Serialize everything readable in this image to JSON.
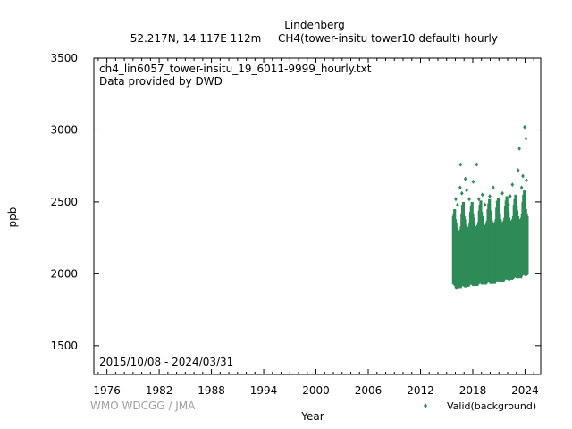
{
  "header": {
    "station": "Lindenberg",
    "location": "52.217N, 14.117E 112m",
    "parameter": "CH4(tower-insitu tower10 default) hourly"
  },
  "plot_notes": {
    "file": "ch4_lin6057_tower-insitu_19_6011-9999_hourly.txt",
    "provider": "Data provided by DWD",
    "period": "2015/10/08 - 2024/03/31"
  },
  "footer": {
    "credit": "WMO WDCGG / JMA"
  },
  "chart_data": {
    "type": "scatter",
    "title": "Lindenberg",
    "xlabel": "Year",
    "ylabel": "ppb",
    "xlim": [
      1974.5,
      2025.8
    ],
    "ylim": [
      1300,
      3500
    ],
    "xticks": [
      1976,
      1982,
      1988,
      1994,
      2000,
      2006,
      2012,
      2018,
      2024
    ],
    "yticks": [
      1500,
      2000,
      2500,
      3000,
      3500
    ],
    "legend": {
      "label": "Valid(background)",
      "position": "bottom-right",
      "color": "#2e8b57"
    },
    "grid": false,
    "series": [
      {
        "name": "Valid(background)",
        "color": "#2e8b57",
        "x": [
          2015.78,
          2015.85,
          2015.92,
          2016.0,
          2016.08,
          2016.17,
          2016.25,
          2016.33,
          2016.42,
          2016.5,
          2016.58,
          2016.67,
          2016.75,
          2016.83,
          2016.92,
          2017.0,
          2017.08,
          2017.17,
          2017.25,
          2017.33,
          2017.42,
          2017.5,
          2017.58,
          2017.67,
          2017.75,
          2017.83,
          2017.92,
          2018.0,
          2018.08,
          2018.17,
          2018.25,
          2018.33,
          2018.42,
          2018.5,
          2018.58,
          2018.67,
          2018.75,
          2018.83,
          2018.92,
          2019.0,
          2019.08,
          2019.17,
          2019.25,
          2019.33,
          2019.42,
          2019.5,
          2019.58,
          2019.67,
          2019.75,
          2019.83,
          2019.92,
          2020.0,
          2020.08,
          2020.17,
          2020.25,
          2020.33,
          2020.42,
          2020.5,
          2020.58,
          2020.67,
          2020.75,
          2020.83,
          2020.92,
          2021.0,
          2021.08,
          2021.17,
          2021.25,
          2021.33,
          2021.42,
          2021.5,
          2021.58,
          2021.67,
          2021.75,
          2021.83,
          2021.92,
          2022.0,
          2022.08,
          2022.17,
          2022.25,
          2022.33,
          2022.42,
          2022.5,
          2022.58,
          2022.67,
          2022.75,
          2022.83,
          2022.92,
          2023.0,
          2023.08,
          2023.17,
          2023.25,
          2023.33,
          2023.42,
          2023.5,
          2023.58,
          2023.67,
          2023.75,
          2023.83,
          2023.92,
          2024.0,
          2024.08,
          2024.17,
          2024.25
        ],
        "ymin": [
          1930,
          1925,
          1920,
          1915,
          1900,
          1895,
          1900,
          1910,
          1920,
          1905,
          1900,
          1910,
          1920,
          1925,
          1930,
          1915,
          1910,
          1905,
          1910,
          1920,
          1915,
          1910,
          1920,
          1925,
          1930,
          1935,
          1935,
          1920,
          1915,
          1915,
          1920,
          1925,
          1920,
          1915,
          1925,
          1930,
          1940,
          1945,
          1940,
          1930,
          1925,
          1925,
          1930,
          1935,
          1930,
          1925,
          1935,
          1940,
          1945,
          1950,
          1950,
          1935,
          1930,
          1930,
          1935,
          1940,
          1935,
          1930,
          1940,
          1945,
          1955,
          1960,
          1960,
          1950,
          1945,
          1945,
          1950,
          1955,
          1950,
          1945,
          1955,
          1960,
          1965,
          1970,
          1975,
          1960,
          1960,
          1955,
          1960,
          1965,
          1960,
          1960,
          1965,
          1970,
          1980,
          1985,
          1990,
          1975,
          1970,
          1970,
          1975,
          1980,
          1975,
          1970,
          1980,
          1990,
          2000,
          2005,
          2010,
          1990,
          1985,
          1990,
          1995
        ],
        "ymax": [
          2400,
          2420,
          2450,
          2380,
          2350,
          2320,
          2300,
          2280,
          2290,
          2300,
          2310,
          2330,
          2420,
          2480,
          2500,
          2400,
          2380,
          2340,
          2320,
          2300,
          2310,
          2320,
          2330,
          2350,
          2430,
          2470,
          2500,
          2420,
          2390,
          2350,
          2330,
          2310,
          2320,
          2330,
          2340,
          2360,
          2440,
          2480,
          2510,
          2430,
          2400,
          2360,
          2340,
          2320,
          2330,
          2340,
          2350,
          2370,
          2450,
          2490,
          2520,
          2440,
          2410,
          2370,
          2350,
          2330,
          2340,
          2350,
          2360,
          2380,
          2460,
          2500,
          2530,
          2450,
          2420,
          2380,
          2360,
          2340,
          2350,
          2360,
          2370,
          2390,
          2470,
          2510,
          2540,
          2460,
          2430,
          2390,
          2370,
          2350,
          2360,
          2370,
          2380,
          2400,
          2480,
          2520,
          2550,
          2470,
          2440,
          2400,
          2380,
          2360,
          2370,
          2380,
          2390,
          2420,
          2500,
          2550,
          2580,
          2500,
          2450,
          2420,
          2400
        ],
        "outliers": [
          [
            2016.05,
            2520
          ],
          [
            2016.25,
            2480
          ],
          [
            2016.55,
            2600
          ],
          [
            2016.6,
            2760
          ],
          [
            2016.75,
            2560
          ],
          [
            2017.15,
            2660
          ],
          [
            2017.3,
            2580
          ],
          [
            2017.6,
            2520
          ],
          [
            2018.05,
            2640
          ],
          [
            2018.45,
            2760
          ],
          [
            2018.7,
            2520
          ],
          [
            2019.1,
            2550
          ],
          [
            2019.4,
            2480
          ],
          [
            2019.95,
            2540
          ],
          [
            2020.35,
            2600
          ],
          [
            2020.8,
            2500
          ],
          [
            2021.4,
            2560
          ],
          [
            2021.9,
            2520
          ],
          [
            2022.3,
            2540
          ],
          [
            2022.55,
            2620
          ],
          [
            2022.9,
            2500
          ],
          [
            2023.2,
            2720
          ],
          [
            2023.35,
            2870
          ],
          [
            2023.6,
            2600
          ],
          [
            2023.75,
            2680
          ],
          [
            2023.95,
            3020
          ],
          [
            2024.1,
            2940
          ],
          [
            2024.15,
            2650
          ],
          [
            2022.1,
            2480
          ]
        ]
      }
    ]
  }
}
